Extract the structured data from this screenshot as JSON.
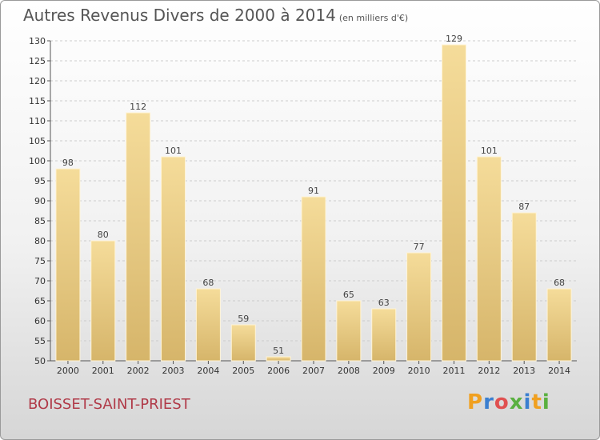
{
  "header": {
    "title": "Autres Revenus Divers de 2000 à 2014",
    "unit": "(en milliers d'€)"
  },
  "footer": {
    "city": "BOISSET-SAINT-PRIEST",
    "logo_letters": [
      "P",
      "r",
      "o",
      "x",
      "i",
      "t",
      "i"
    ]
  },
  "colors": {
    "bar_light": "#f5dc9a",
    "bar_dark": "#d6b56a",
    "grid": "#cccccc",
    "axis": "#555555",
    "city": "#b03a48",
    "logo": [
      "#f0a020",
      "#3b7fd0",
      "#e05050",
      "#5ab040",
      "#3b7fd0",
      "#f0a020",
      "#5ab040"
    ]
  },
  "chart_data": {
    "type": "bar",
    "title": "Autres Revenus Divers de 2000 à 2014",
    "categories": [
      "2000",
      "2001",
      "2002",
      "2003",
      "2004",
      "2005",
      "2006",
      "2007",
      "2008",
      "2009",
      "2010",
      "2011",
      "2012",
      "2013",
      "2014"
    ],
    "values": [
      98,
      80,
      112,
      101,
      68,
      59,
      51,
      91,
      65,
      63,
      77,
      129,
      101,
      87,
      68
    ],
    "ylim": [
      50,
      130
    ],
    "yticks": [
      50,
      55,
      60,
      65,
      70,
      75,
      80,
      85,
      90,
      95,
      100,
      105,
      110,
      115,
      120,
      125,
      130
    ],
    "grid": true,
    "xlabel": "",
    "ylabel": ""
  }
}
